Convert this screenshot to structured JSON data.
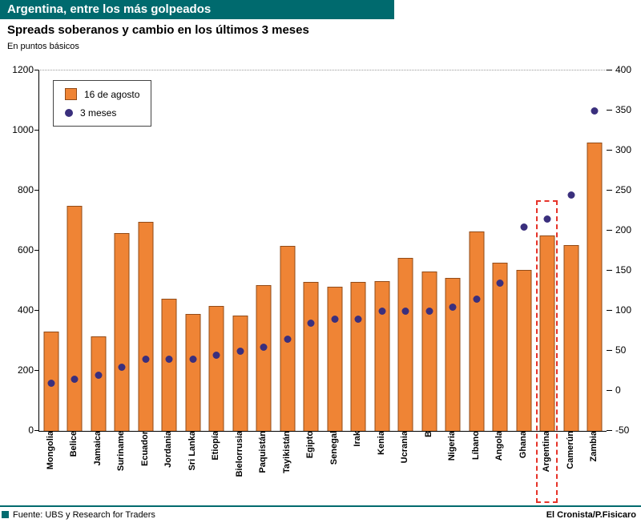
{
  "header": {
    "title": "Argentina, entre los más golpeados",
    "subtitle": "Spreads soberanos y cambio en los últimos 3 meses",
    "units": "En puntos básicos"
  },
  "chart_data": {
    "type": "bar",
    "title": "Argentina, entre los más golpeados",
    "subtitle": "Spreads soberanos y cambio en los últimos 3 meses",
    "ylabel_units": "En puntos básicos",
    "categories": [
      "Mongolia",
      "Belice",
      "Jamaica",
      "Suriname",
      "Ecuador",
      "Jordania",
      "Sri Lanka",
      "Etiopía",
      "Bielorrusia",
      "Paquistán",
      "Tayikistán",
      "Egipto",
      "Senegal",
      "Irak",
      "Kenia",
      "Ucrania",
      "B",
      "Nigeria",
      "Líbano",
      "Angola",
      "Ghana",
      "Argentina",
      "Camerún",
      "Zambia"
    ],
    "series": [
      {
        "name": "16 de agosto",
        "type": "bar",
        "axis": "left",
        "values": [
          330,
          750,
          315,
          660,
          695,
          440,
          390,
          415,
          385,
          485,
          615,
          495,
          480,
          495,
          500,
          575,
          530,
          510,
          665,
          560,
          535,
          650,
          620,
          960
        ]
      },
      {
        "name": "3 meses",
        "type": "scatter",
        "axis": "right",
        "values": [
          10,
          15,
          20,
          30,
          40,
          40,
          40,
          45,
          50,
          55,
          65,
          85,
          90,
          90,
          100,
          100,
          100,
          105,
          115,
          135,
          205,
          215,
          245,
          350
        ]
      }
    ],
    "left_axis": {
      "min": 0,
      "max": 1200,
      "ticks": [
        1200,
        1000,
        800,
        600,
        400,
        200,
        0
      ]
    },
    "right_axis": {
      "min": -50,
      "max": 400,
      "ticks": [
        400,
        350,
        300,
        250,
        200,
        150,
        100,
        50,
        0,
        -50
      ]
    },
    "highlight_category": "Argentina",
    "legend_position": "top-left",
    "grid": false,
    "colors": {
      "bar": "#EF8435",
      "dot": "#3A2F7D",
      "highlight": "#E63329",
      "accent": "#006A6E"
    }
  },
  "footer": {
    "source": "Fuente: UBS y Research for Traders",
    "credit": "El Cronista/P.Fisicaro"
  }
}
